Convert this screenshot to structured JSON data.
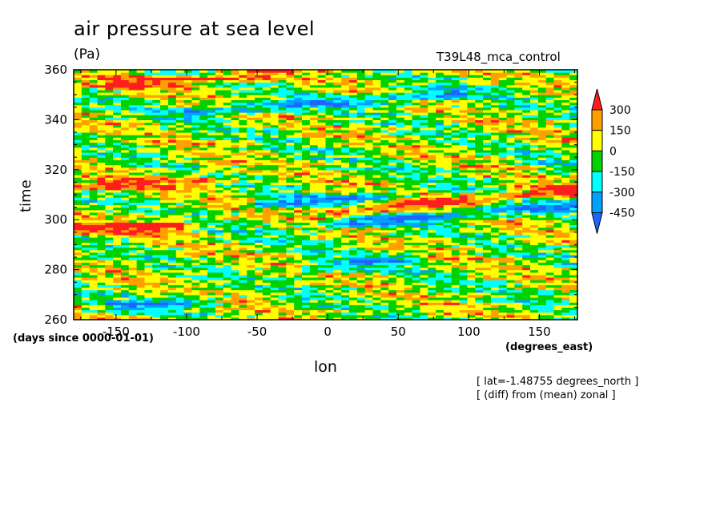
{
  "chart_data": {
    "type": "heatmap",
    "title": "air pressure at sea level",
    "units": "(Pa)",
    "run_name": "T39L48_mca_control",
    "xlabel": "lon",
    "ylabel": "time",
    "x_units": "(degrees_east)",
    "y_units": "(days since 0000-01-01)",
    "xlim": [
      -180,
      177
    ],
    "ylim": [
      260,
      360
    ],
    "x_ticks": [
      -150,
      -100,
      -50,
      0,
      50,
      100,
      150
    ],
    "y_ticks": [
      260,
      280,
      300,
      320,
      340,
      360
    ],
    "x_tick_labels": [
      "-150",
      "-100",
      "-50",
      "0",
      "50",
      "100",
      "150"
    ],
    "y_tick_labels": [
      "260",
      "280",
      "300",
      "320",
      "340",
      "360"
    ],
    "colorbar": {
      "levels": [
        -450,
        -300,
        -150,
        0,
        150,
        300
      ],
      "labels": [
        "300",
        "150",
        "0",
        "-150",
        "-300",
        "-450"
      ],
      "colors": [
        "#1e64ff",
        "#00a0ff",
        "#00ffff",
        "#00d200",
        "#ffff00",
        "#ffa000",
        "#ff1e1e"
      ],
      "extend": "both"
    },
    "annotations": [
      "[ lat=-1.48755 degrees_north ]",
      "[ (diff) from (mean) zonal ]"
    ],
    "features": [
      {
        "type": "positive-anomaly band",
        "lon": [
          -180,
          -100
        ],
        "time": [
          296,
          298
        ],
        "value": 350
      },
      {
        "type": "positive-anomaly band",
        "lon": [
          0,
          177
        ],
        "time": [
          303,
          312
        ],
        "value": 350
      },
      {
        "type": "positive-anomaly band",
        "lon": [
          -160,
          -40
        ],
        "time": [
          354,
          358
        ],
        "value": 350
      },
      {
        "type": "positive-anomaly band",
        "lon": [
          -180,
          -80
        ],
        "time": [
          313,
          316
        ],
        "value": 300
      },
      {
        "type": "negative-anomaly band",
        "lon": [
          0,
          177
        ],
        "time": [
          298,
          306
        ],
        "value": -400
      },
      {
        "type": "negative-anomaly band",
        "lon": [
          -50,
          50
        ],
        "time": [
          306,
          310
        ],
        "value": -350
      },
      {
        "type": "negative-anomaly band",
        "lon": [
          -100,
          100
        ],
        "time": [
          343,
          351
        ],
        "value": -350
      },
      {
        "type": "negative-anomaly band",
        "lon": [
          -20,
          60
        ],
        "time": [
          280,
          285
        ],
        "value": -300
      },
      {
        "type": "negative-anomaly band",
        "lon": [
          -160,
          -80
        ],
        "time": [
          265,
          268
        ],
        "value": -300
      }
    ]
  }
}
